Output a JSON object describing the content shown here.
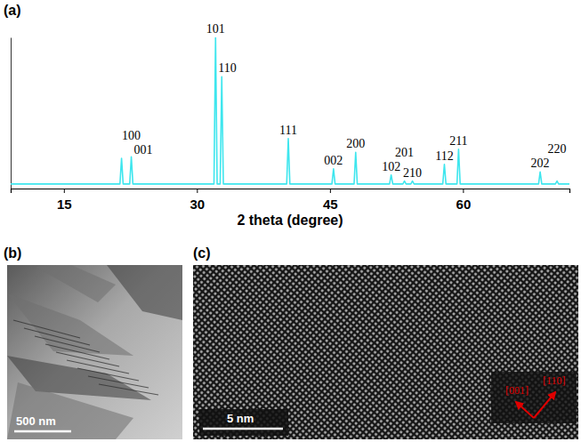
{
  "chart_data": {
    "type": "line",
    "panel_label": "(a)",
    "x_label": "2 theta (degree)",
    "color": "#3ee6ee",
    "x": [
      9,
      21.32,
      21.5,
      21.68,
      22.42,
      22.6,
      22.78,
      31.92,
      32.1,
      32.28,
      32.62,
      32.8,
      32.98,
      40.12,
      40.3,
      40.48,
      45.22,
      45.4,
      45.58,
      47.72,
      47.9,
      48.08,
      51.72,
      51.9,
      52.08,
      53.22,
      53.4,
      53.58,
      54.12,
      54.3,
      54.48,
      57.72,
      57.9,
      58.08,
      59.32,
      59.5,
      59.68,
      68.52,
      68.7,
      68.88,
      70.42,
      70.6,
      70.78,
      72
    ],
    "values": [
      3,
      3,
      20,
      3,
      3,
      21,
      3,
      3,
      100,
      3,
      3,
      74,
      3,
      3,
      33,
      3,
      3,
      13,
      3,
      3,
      24,
      3,
      3,
      9,
      3,
      3,
      5,
      3,
      3,
      5,
      3,
      3,
      16,
      3,
      3,
      26,
      3,
      3,
      11,
      3,
      3,
      5,
      3,
      3
    ],
    "xlim": [
      9,
      72
    ],
    "xticks": [
      15,
      30,
      45,
      60
    ],
    "ylim": [
      0,
      100
    ],
    "yticks": [],
    "tick_labels": "x",
    "annotations": [
      {
        "text": "001",
        "x": 21.5,
        "y": 20
      },
      {
        "text": "100",
        "x": 22.6,
        "y": 21
      },
      {
        "text": "101",
        "x": 32.1,
        "y": 100
      },
      {
        "text": "110",
        "x": 32.8,
        "y": 74
      },
      {
        "text": "111",
        "x": 40.3,
        "y": 33
      },
      {
        "text": "002",
        "x": 45.4,
        "y": 13
      },
      {
        "text": "200",
        "x": 47.9,
        "y": 24
      },
      {
        "text": "102",
        "x": 51.9,
        "y": 9
      },
      {
        "text": "201",
        "x": 53.4,
        "y": 5
      },
      {
        "text": "210",
        "x": 54.3,
        "y": 5
      },
      {
        "text": "112",
        "x": 57.9,
        "y": 16
      },
      {
        "text": "211",
        "x": 59.5,
        "y": 26
      },
      {
        "text": "202",
        "x": 68.7,
        "y": 11
      },
      {
        "text": "220",
        "x": 70.6,
        "y": 5
      }
    ]
  },
  "images": [
    {
      "panel_label": "(b)",
      "scale_bar": "500 nm"
    },
    {
      "panel_label": "(c)",
      "scale_bar": "5 nm",
      "directions": [
        "[001]",
        "[110]"
      ]
    }
  ]
}
